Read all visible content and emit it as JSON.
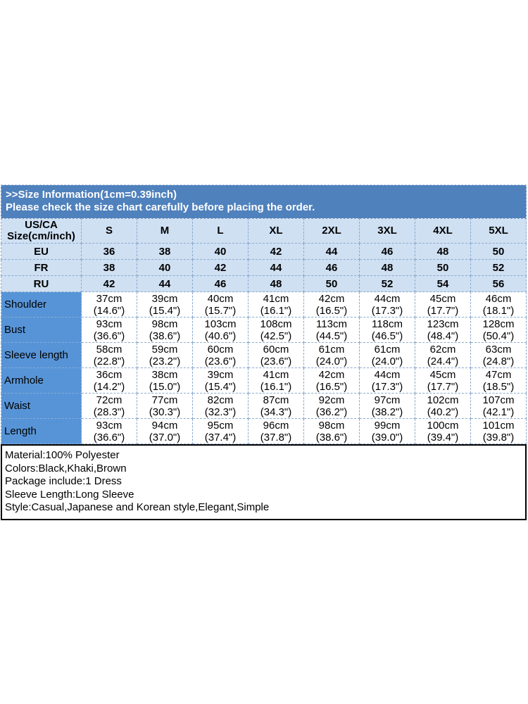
{
  "banner": {
    "title": ">>Size Information(1cm=0.39inch)",
    "subtitle": "Please check the size chart carefully before placing the order."
  },
  "table": {
    "corner_line1": "US/CA",
    "corner_line2": "Size(cm/inch)",
    "sizes": [
      "S",
      "M",
      "L",
      "XL",
      "2XL",
      "3XL",
      "4XL",
      "5XL"
    ],
    "region_rows": [
      {
        "label": "EU",
        "values": [
          "36",
          "38",
          "40",
          "42",
          "44",
          "46",
          "48",
          "50"
        ]
      },
      {
        "label": "FR",
        "values": [
          "38",
          "40",
          "42",
          "44",
          "46",
          "48",
          "50",
          "52"
        ]
      },
      {
        "label": "RU",
        "values": [
          "42",
          "44",
          "46",
          "48",
          "50",
          "52",
          "54",
          "56"
        ]
      }
    ],
    "measure_rows": [
      {
        "label": "Shoulder",
        "values": [
          "37cm\n(14.6\")",
          "39cm\n(15.4\")",
          "40cm\n(15.7\")",
          "41cm\n(16.1\")",
          "42cm\n(16.5\")",
          "44cm\n(17.3\")",
          "45cm\n(17.7\")",
          "46cm\n(18.1\")"
        ]
      },
      {
        "label": "Bust",
        "values": [
          "93cm\n(36.6\")",
          "98cm\n(38.6\")",
          "103cm\n(40.6\")",
          "108cm\n(42.5\")",
          "113cm\n(44.5\")",
          "118cm\n(46.5\")",
          "123cm\n(48.4\")",
          "128cm\n(50.4\")"
        ]
      },
      {
        "label": "Sleeve length",
        "values": [
          "58cm\n(22.8\")",
          "59cm\n(23.2\")",
          "60cm\n(23.6\")",
          "60cm\n(23.6\")",
          "61cm\n(24.0\")",
          "61cm\n(24.0\")",
          "62cm\n(24.4\")",
          "63cm\n(24.8\")"
        ]
      },
      {
        "label": "Armhole",
        "values": [
          "36cm\n(14.2\")",
          "38cm\n(15.0\")",
          "39cm\n(15.4\")",
          "41cm\n(16.1\")",
          "42cm\n(16.5\")",
          "44cm\n(17.3\")",
          "45cm\n(17.7\")",
          "47cm\n(18.5\")"
        ]
      },
      {
        "label": "Waist",
        "values": [
          "72cm\n(28.3\")",
          "77cm\n(30.3\")",
          "82cm\n(32.3\")",
          "87cm\n(34.3\")",
          "92cm\n(36.2\")",
          "97cm\n(38.2\")",
          "102cm\n(40.2\")",
          "107cm\n(42.1\")"
        ]
      },
      {
        "label": "Length",
        "values": [
          "93cm\n(36.6\")",
          "94cm\n(37.0\")",
          "95cm\n(37.4\")",
          "96cm\n(37.8\")",
          "98cm\n(38.6\")",
          "99cm\n(39.0\")",
          "100cm\n(39.4\")",
          "101cm\n(39.8\")"
        ]
      }
    ]
  },
  "details": {
    "lines": [
      "Material:100% Polyester",
      "Colors:Black,Khaki,Brown",
      "Package include:1 Dress",
      "Sleeve Length:Long Sleeve",
      "Style:Casual,Japanese and Korean style,Elegant,Simple"
    ]
  },
  "colors": {
    "banner_bg": "#4f81bd",
    "banner_text": "#ffffff",
    "header_cell_bg": "#cfe0f3",
    "label_column_bg": "#5794d7",
    "grid_line": "#8aa9cc",
    "details_border": "#000000"
  }
}
